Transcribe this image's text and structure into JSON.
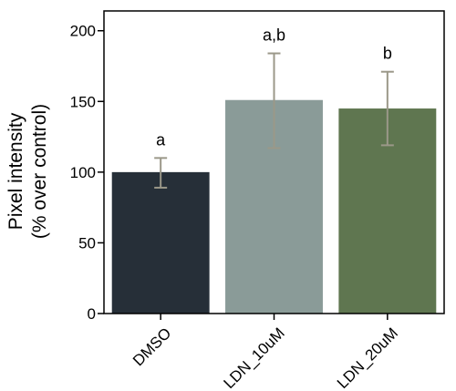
{
  "chart_data": {
    "type": "bar",
    "title": "",
    "xlabel": "",
    "ylabel_lines": [
      "Pixel intensity",
      "(% over control)"
    ],
    "ylim": [
      0,
      214
    ],
    "yticks": [
      0,
      50,
      100,
      150,
      200
    ],
    "grid": false,
    "legend": "none",
    "categories": [
      "DMSO",
      "LDN_10uM",
      "LDN_20uM"
    ],
    "values": [
      100,
      151,
      145
    ],
    "error_low": [
      89,
      117,
      119
    ],
    "error_high": [
      110,
      184,
      171
    ],
    "significance_labels": [
      "a",
      "a,b",
      "b"
    ],
    "bar_colors": [
      "#262f38",
      "#8a9b98",
      "#5f7650"
    ],
    "error_bar_color": "#9b9889"
  }
}
